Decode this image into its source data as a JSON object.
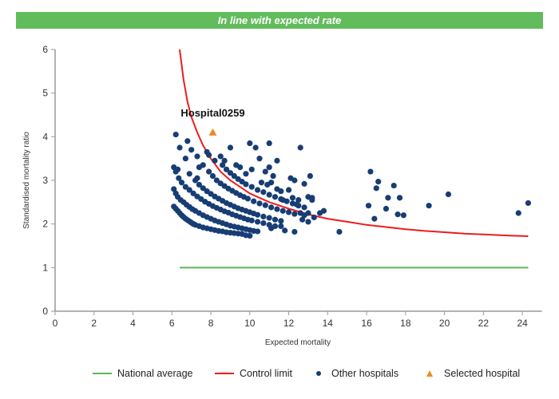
{
  "banner": {
    "text": "In line with expected rate",
    "color": "#62bc5c"
  },
  "colors": {
    "national_average": "#5cb85c",
    "control_limit": "#ee1c1c",
    "other_hospitals": "#173d74",
    "selected_hospital": "#f08a1d",
    "axis": "#999999"
  },
  "legend": [
    {
      "label": "National average",
      "type": "line",
      "color_key": "national_average"
    },
    {
      "label": "Control limit",
      "type": "line",
      "color_key": "control_limit"
    },
    {
      "label": "Other hospitals",
      "type": "dot",
      "color_key": "other_hospitals"
    },
    {
      "label": "Selected hospital",
      "type": "triangle",
      "color_key": "selected_hospital"
    }
  ],
  "chart_data": {
    "type": "scatter",
    "title": "In line with expected rate",
    "xlabel": "Expected mortality",
    "ylabel": "Standardised mortality ratio",
    "xlim": [
      0,
      25
    ],
    "ylim": [
      0,
      6
    ],
    "xticks": [
      0,
      2,
      4,
      6,
      8,
      10,
      12,
      14,
      16,
      18,
      20,
      22,
      24
    ],
    "yticks": [
      0,
      1,
      2,
      3,
      4,
      5,
      6
    ],
    "grid": false,
    "legend_position": "bottom",
    "national_average": {
      "y": 1,
      "x_range": [
        6.4,
        24.3
      ]
    },
    "control_limit": {
      "points": [
        [
          6.4,
          6.0
        ],
        [
          6.6,
          5.3
        ],
        [
          6.8,
          4.8
        ],
        [
          7.0,
          4.45
        ],
        [
          7.3,
          4.1
        ],
        [
          7.6,
          3.8
        ],
        [
          8.0,
          3.5
        ],
        [
          8.5,
          3.2
        ],
        [
          9.0,
          3.0
        ],
        [
          9.5,
          2.85
        ],
        [
          10.0,
          2.7
        ],
        [
          11.0,
          2.5
        ],
        [
          12.0,
          2.35
        ],
        [
          13.0,
          2.22
        ],
        [
          14.0,
          2.12
        ],
        [
          15.0,
          2.05
        ],
        [
          16.0,
          1.98
        ],
        [
          17.0,
          1.93
        ],
        [
          18.0,
          1.88
        ],
        [
          19.0,
          1.84
        ],
        [
          20.0,
          1.81
        ],
        [
          21.0,
          1.78
        ],
        [
          22.0,
          1.76
        ],
        [
          23.0,
          1.74
        ],
        [
          24.3,
          1.72
        ]
      ]
    },
    "selected_hospital": {
      "name": "Hospital0259",
      "x": 8.1,
      "y": 4.1
    },
    "other_hospitals": [
      [
        6.1,
        2.4
      ],
      [
        6.2,
        2.35
      ],
      [
        6.3,
        2.3
      ],
      [
        6.4,
        2.25
      ],
      [
        6.5,
        2.2
      ],
      [
        6.6,
        2.16
      ],
      [
        6.7,
        2.12
      ],
      [
        6.8,
        2.09
      ],
      [
        6.9,
        2.06
      ],
      [
        7.0,
        2.03
      ],
      [
        7.1,
        2.0
      ],
      [
        7.2,
        1.98
      ],
      [
        7.4,
        1.95
      ],
      [
        7.6,
        1.92
      ],
      [
        7.8,
        1.9
      ],
      [
        8.0,
        1.88
      ],
      [
        8.2,
        1.86
      ],
      [
        8.4,
        1.84
      ],
      [
        8.6,
        1.83
      ],
      [
        8.8,
        1.81
      ],
      [
        9.0,
        1.8
      ],
      [
        9.2,
        1.79
      ],
      [
        9.4,
        1.78
      ],
      [
        9.6,
        1.77
      ],
      [
        9.8,
        1.74
      ],
      [
        10.0,
        1.73
      ],
      [
        6.1,
        2.8
      ],
      [
        6.2,
        2.7
      ],
      [
        6.3,
        2.62
      ],
      [
        6.45,
        2.55
      ],
      [
        6.6,
        2.5
      ],
      [
        6.75,
        2.44
      ],
      [
        6.9,
        2.39
      ],
      [
        7.05,
        2.34
      ],
      [
        7.2,
        2.3
      ],
      [
        7.4,
        2.25
      ],
      [
        7.6,
        2.2
      ],
      [
        7.8,
        2.16
      ],
      [
        8.0,
        2.12
      ],
      [
        8.2,
        2.08
      ],
      [
        8.4,
        2.05
      ],
      [
        8.6,
        2.02
      ],
      [
        8.8,
        1.99
      ],
      [
        9.0,
        1.96
      ],
      [
        9.2,
        1.94
      ],
      [
        9.4,
        1.92
      ],
      [
        9.6,
        1.9
      ],
      [
        9.8,
        1.88
      ],
      [
        10.0,
        1.86
      ],
      [
        10.2,
        1.84
      ],
      [
        10.4,
        1.83
      ],
      [
        6.1,
        3.3
      ],
      [
        6.2,
        3.2
      ],
      [
        6.35,
        3.05
      ],
      [
        6.5,
        2.95
      ],
      [
        6.7,
        2.85
      ],
      [
        6.9,
        2.78
      ],
      [
        7.1,
        2.7
      ],
      [
        7.3,
        2.63
      ],
      [
        7.5,
        2.57
      ],
      [
        7.7,
        2.51
      ],
      [
        7.9,
        2.46
      ],
      [
        8.1,
        2.41
      ],
      [
        8.3,
        2.37
      ],
      [
        8.5,
        2.33
      ],
      [
        8.7,
        2.29
      ],
      [
        8.9,
        2.26
      ],
      [
        9.1,
        2.22
      ],
      [
        9.3,
        2.19
      ],
      [
        9.5,
        2.16
      ],
      [
        9.7,
        2.13
      ],
      [
        9.9,
        2.1
      ],
      [
        10.1,
        2.08
      ],
      [
        10.4,
        2.05
      ],
      [
        10.7,
        2.02
      ],
      [
        11.0,
        1.98
      ],
      [
        11.3,
        1.95
      ],
      [
        7.2,
        3.0
      ],
      [
        7.4,
        2.9
      ],
      [
        7.6,
        2.82
      ],
      [
        7.8,
        2.75
      ],
      [
        8.0,
        2.69
      ],
      [
        8.2,
        2.63
      ],
      [
        8.4,
        2.58
      ],
      [
        8.6,
        2.53
      ],
      [
        8.8,
        2.48
      ],
      [
        9.0,
        2.44
      ],
      [
        9.2,
        2.4
      ],
      [
        9.4,
        2.36
      ],
      [
        9.6,
        2.33
      ],
      [
        9.8,
        2.3
      ],
      [
        10.0,
        2.27
      ],
      [
        10.2,
        2.24
      ],
      [
        10.4,
        2.21
      ],
      [
        10.7,
        2.17
      ],
      [
        11.0,
        2.14
      ],
      [
        11.3,
        2.1
      ],
      [
        11.6,
        2.07
      ],
      [
        7.9,
        3.2
      ],
      [
        8.1,
        3.1
      ],
      [
        8.3,
        3.0
      ],
      [
        8.5,
        2.93
      ],
      [
        8.7,
        2.87
      ],
      [
        8.9,
        2.81
      ],
      [
        9.1,
        2.76
      ],
      [
        9.3,
        2.71
      ],
      [
        9.5,
        2.66
      ],
      [
        9.7,
        2.62
      ],
      [
        9.9,
        2.58
      ],
      [
        10.2,
        2.52
      ],
      [
        10.5,
        2.47
      ],
      [
        10.8,
        2.43
      ],
      [
        11.1,
        2.38
      ],
      [
        11.4,
        2.34
      ],
      [
        11.7,
        2.3
      ],
      [
        12.0,
        2.27
      ],
      [
        12.3,
        2.23
      ],
      [
        8.6,
        3.35
      ],
      [
        8.8,
        3.25
      ],
      [
        9.0,
        3.17
      ],
      [
        9.2,
        3.1
      ],
      [
        9.4,
        3.03
      ],
      [
        9.6,
        2.97
      ],
      [
        9.8,
        2.91
      ],
      [
        10.1,
        2.85
      ],
      [
        10.4,
        2.78
      ],
      [
        10.7,
        2.73
      ],
      [
        11.0,
        2.67
      ],
      [
        11.3,
        2.62
      ],
      [
        11.6,
        2.57
      ],
      [
        11.9,
        2.52
      ],
      [
        12.2,
        2.47
      ],
      [
        12.5,
        2.42
      ],
      [
        12.8,
        2.38
      ],
      [
        6.2,
        4.05
      ],
      [
        6.4,
        3.75
      ],
      [
        6.8,
        3.9
      ],
      [
        7.0,
        3.7
      ],
      [
        6.7,
        3.5
      ],
      [
        7.3,
        3.55
      ],
      [
        7.8,
        3.65
      ],
      [
        7.9,
        3.58
      ],
      [
        7.6,
        3.35
      ],
      [
        6.9,
        3.15
      ],
      [
        7.4,
        3.3
      ],
      [
        7.3,
        3.05
      ],
      [
        6.3,
        3.25
      ],
      [
        8.2,
        3.45
      ],
      [
        8.5,
        3.55
      ],
      [
        8.7,
        3.45
      ],
      [
        9.0,
        3.75
      ],
      [
        9.3,
        3.35
      ],
      [
        9.5,
        3.3
      ],
      [
        9.8,
        3.15
      ],
      [
        10.1,
        3.25
      ],
      [
        10.5,
        3.5
      ],
      [
        10.0,
        3.85
      ],
      [
        10.3,
        3.75
      ],
      [
        11.0,
        3.85
      ],
      [
        11.2,
        3.1
      ],
      [
        10.8,
        3.2
      ],
      [
        11.4,
        3.45
      ],
      [
        12.6,
        3.75
      ],
      [
        11.0,
        3.3
      ],
      [
        10.6,
        2.95
      ],
      [
        10.9,
        2.9
      ],
      [
        11.1,
        2.95
      ],
      [
        11.4,
        2.8
      ],
      [
        11.6,
        2.75
      ],
      [
        12.1,
        3.05
      ],
      [
        12.3,
        3.0
      ],
      [
        12.8,
        2.92
      ],
      [
        13.0,
        2.62
      ],
      [
        13.2,
        2.6
      ],
      [
        13.2,
        2.55
      ],
      [
        13.1,
        3.1
      ],
      [
        12.0,
        2.78
      ],
      [
        11.7,
        2.55
      ],
      [
        12.2,
        2.6
      ],
      [
        12.5,
        2.55
      ],
      [
        12.4,
        2.45
      ],
      [
        12.6,
        2.25
      ],
      [
        12.8,
        2.2
      ],
      [
        13.0,
        2.25
      ],
      [
        13.3,
        2.15
      ],
      [
        13.6,
        2.25
      ],
      [
        13.8,
        2.3
      ],
      [
        12.7,
        2.1
      ],
      [
        13.0,
        2.05
      ],
      [
        11.8,
        1.85
      ],
      [
        12.3,
        1.82
      ],
      [
        11.1,
        1.9
      ],
      [
        11.6,
        1.95
      ],
      [
        14.6,
        1.82
      ],
      [
        16.1,
        2.42
      ],
      [
        16.2,
        3.2
      ],
      [
        16.4,
        2.12
      ],
      [
        16.5,
        2.82
      ],
      [
        16.6,
        2.97
      ],
      [
        17.0,
        2.35
      ],
      [
        17.1,
        2.6
      ],
      [
        17.4,
        2.88
      ],
      [
        17.6,
        2.22
      ],
      [
        17.7,
        2.6
      ],
      [
        17.9,
        2.2
      ],
      [
        19.2,
        2.42
      ],
      [
        20.2,
        2.68
      ],
      [
        23.8,
        2.25
      ],
      [
        24.3,
        2.48
      ]
    ]
  }
}
